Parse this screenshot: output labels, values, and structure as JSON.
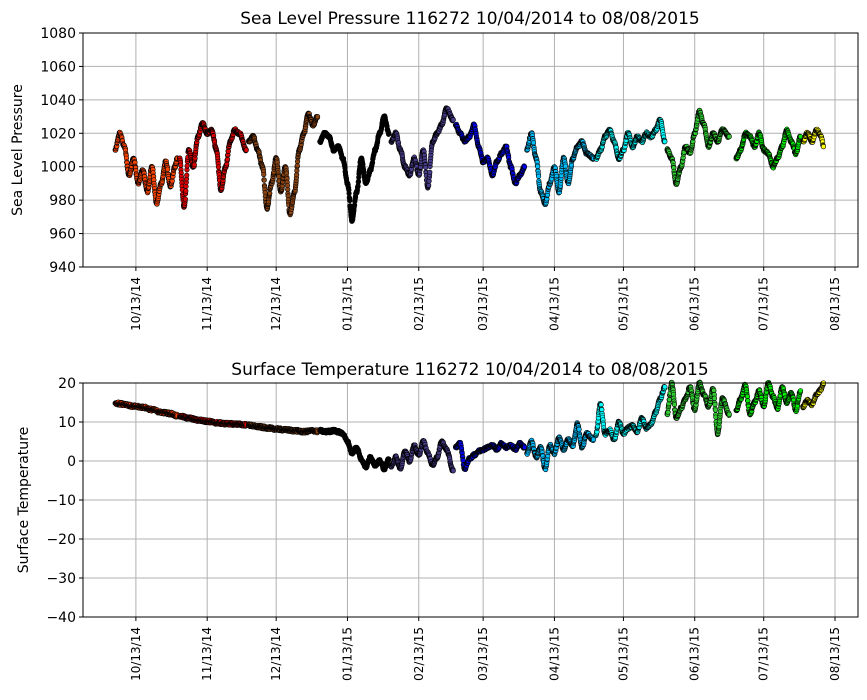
{
  "chart_data": [
    {
      "type": "scatter",
      "title": "Sea Level Pressure 116272  10/04/2014 to 08/08/2015",
      "xlabel": "",
      "ylabel": "Sea Level Pressure",
      "xlim": [
        "2014-09-20",
        "2015-08-23"
      ],
      "ylim": [
        940,
        1080
      ],
      "yticks": [
        940,
        960,
        980,
        1000,
        1020,
        1040,
        1060,
        1080
      ],
      "xticks": [
        "2014-10-13",
        "2014-11-13",
        "2014-12-13",
        "2015-01-13",
        "2015-02-13",
        "2015-03-13",
        "2015-04-13",
        "2015-05-13",
        "2015-06-13",
        "2015-07-13",
        "2015-08-13"
      ],
      "xtick_labels": [
        "10/13/14",
        "11/13/14",
        "12/13/14",
        "01/13/15",
        "02/13/15",
        "03/13/15",
        "04/13/15",
        "05/13/15",
        "06/13/15",
        "07/13/15",
        "08/13/15"
      ],
      "grid": true,
      "series": [
        {
          "color": "#ff4500",
          "x": [
            "2014-10-04",
            "2014-10-06",
            "2014-10-08",
            "2014-10-10",
            "2014-10-12",
            "2014-10-14",
            "2014-10-16",
            "2014-10-18",
            "2014-10-20",
            "2014-10-22",
            "2014-10-24",
            "2014-10-26",
            "2014-10-28",
            "2014-10-30",
            "2014-10-31"
          ],
          "y": [
            1010,
            1020,
            1012,
            995,
            1005,
            990,
            998,
            985,
            1000,
            978,
            990,
            1003,
            988,
            1000,
            1005
          ]
        },
        {
          "color": "#dd0000",
          "x": [
            "2014-11-01",
            "2014-11-03",
            "2014-11-05",
            "2014-11-07",
            "2014-11-09",
            "2014-11-11",
            "2014-11-13",
            "2014-11-15",
            "2014-11-17",
            "2014-11-19",
            "2014-11-21",
            "2014-11-23",
            "2014-11-25",
            "2014-11-27",
            "2014-11-30"
          ],
          "y": [
            1005,
            976,
            1010,
            1000,
            1018,
            1026,
            1020,
            1022,
            1010,
            986,
            1000,
            1015,
            1022,
            1020,
            1010
          ]
        },
        {
          "color": "#8b4513",
          "x": [
            "2014-12-01",
            "2014-12-03",
            "2014-12-05",
            "2014-12-07",
            "2014-12-09",
            "2014-12-11",
            "2014-12-13",
            "2014-12-15",
            "2014-12-17",
            "2014-12-19",
            "2014-12-21",
            "2014-12-23",
            "2014-12-25",
            "2014-12-27",
            "2014-12-29",
            "2014-12-31"
          ],
          "y": [
            1015,
            1018,
            1010,
            1000,
            975,
            990,
            1005,
            985,
            1000,
            972,
            985,
            1010,
            1020,
            1032,
            1025,
            1030
          ]
        },
        {
          "color": "#000000",
          "x": [
            "2015-01-01",
            "2015-01-03",
            "2015-01-05",
            "2015-01-07",
            "2015-01-09",
            "2015-01-11",
            "2015-01-13",
            "2015-01-15",
            "2015-01-17",
            "2015-01-19",
            "2015-01-21",
            "2015-01-23",
            "2015-01-25",
            "2015-01-27",
            "2015-01-29",
            "2015-01-31"
          ],
          "y": [
            1015,
            1020,
            1018,
            1010,
            1012,
            1005,
            990,
            968,
            985,
            1005,
            990,
            998,
            1010,
            1020,
            1030,
            1020
          ]
        },
        {
          "color": "#483d8b",
          "x": [
            "2015-02-01",
            "2015-02-03",
            "2015-02-05",
            "2015-02-07",
            "2015-02-09",
            "2015-02-11",
            "2015-02-13",
            "2015-02-15",
            "2015-02-17",
            "2015-02-19",
            "2015-02-21",
            "2015-02-23",
            "2015-02-25",
            "2015-02-28"
          ],
          "y": [
            1015,
            1020,
            1010,
            1000,
            995,
            1005,
            995,
            1010,
            988,
            1015,
            1020,
            1025,
            1035,
            1028
          ]
        },
        {
          "color": "#0000ee",
          "x": [
            "2015-03-01",
            "2015-03-03",
            "2015-03-05",
            "2015-03-07",
            "2015-03-09",
            "2015-03-11",
            "2015-03-13",
            "2015-03-15",
            "2015-03-17",
            "2015-03-19",
            "2015-03-21",
            "2015-03-23",
            "2015-03-25",
            "2015-03-27",
            "2015-03-29",
            "2015-03-31"
          ],
          "y": [
            1025,
            1020,
            1015,
            1018,
            1025,
            1012,
            1003,
            1005,
            995,
            1003,
            1008,
            1012,
            1000,
            990,
            995,
            1000
          ]
        },
        {
          "color": "#00bfff",
          "x": [
            "2015-04-01",
            "2015-04-03",
            "2015-04-05",
            "2015-04-07",
            "2015-04-09",
            "2015-04-11",
            "2015-04-13",
            "2015-04-15",
            "2015-04-17",
            "2015-04-19",
            "2015-04-21",
            "2015-04-23",
            "2015-04-25",
            "2015-04-27",
            "2015-04-30"
          ],
          "y": [
            1010,
            1020,
            1005,
            985,
            978,
            990,
            1000,
            985,
            1005,
            990,
            1005,
            1012,
            1015,
            1008,
            1005
          ]
        },
        {
          "color": "#00ffff",
          "x": [
            "2015-05-01",
            "2015-05-03",
            "2015-05-05",
            "2015-05-07",
            "2015-05-09",
            "2015-05-11",
            "2015-05-13",
            "2015-05-15",
            "2015-05-17",
            "2015-05-19",
            "2015-05-21",
            "2015-05-23",
            "2015-05-25",
            "2015-05-27",
            "2015-05-29",
            "2015-05-31"
          ],
          "y": [
            1005,
            1010,
            1018,
            1022,
            1015,
            1005,
            1010,
            1020,
            1012,
            1018,
            1015,
            1020,
            1018,
            1022,
            1028,
            1015
          ]
        },
        {
          "color": "#32cd32",
          "x": [
            "2015-06-01",
            "2015-06-03",
            "2015-06-05",
            "2015-06-07",
            "2015-06-09",
            "2015-06-11",
            "2015-06-13",
            "2015-06-15",
            "2015-06-17",
            "2015-06-19",
            "2015-06-21",
            "2015-06-23",
            "2015-06-25",
            "2015-06-28"
          ],
          "y": [
            1010,
            1005,
            990,
            1000,
            1012,
            1008,
            1020,
            1033,
            1025,
            1012,
            1020,
            1015,
            1022,
            1018
          ]
        },
        {
          "color": "#00ee00",
          "x": [
            "2015-07-01",
            "2015-07-03",
            "2015-07-05",
            "2015-07-07",
            "2015-07-09",
            "2015-07-11",
            "2015-07-13",
            "2015-07-15",
            "2015-07-17",
            "2015-07-19",
            "2015-07-21",
            "2015-07-23",
            "2015-07-25",
            "2015-07-27",
            "2015-07-29"
          ],
          "y": [
            1005,
            1010,
            1020,
            1018,
            1012,
            1020,
            1010,
            1008,
            1000,
            1005,
            1012,
            1022,
            1015,
            1008,
            1018
          ]
        },
        {
          "color": "#ffff00",
          "x": [
            "2015-07-30",
            "2015-08-01",
            "2015-08-03",
            "2015-08-05",
            "2015-08-07",
            "2015-08-08"
          ],
          "y": [
            1015,
            1020,
            1015,
            1022,
            1018,
            1012
          ]
        }
      ]
    },
    {
      "type": "scatter",
      "title": "Surface Temperature 116272  10/04/2014 to 08/08/2015",
      "xlabel": "",
      "ylabel": "Surface Temperature",
      "xlim": [
        "2014-09-20",
        "2015-08-23"
      ],
      "ylim": [
        -40,
        20
      ],
      "yticks": [
        -40,
        -30,
        -20,
        -10,
        0,
        10,
        20
      ],
      "ytick_labels": [
        "−40",
        "−30",
        "−20",
        "−10",
        "0",
        "10",
        "20"
      ],
      "xticks": [
        "2014-10-13",
        "2014-11-13",
        "2014-12-13",
        "2015-01-13",
        "2015-02-13",
        "2015-03-13",
        "2015-04-13",
        "2015-05-13",
        "2015-06-13",
        "2015-07-13",
        "2015-08-13"
      ],
      "xtick_labels": [
        "10/13/14",
        "11/13/14",
        "12/13/14",
        "01/13/15",
        "02/13/15",
        "03/13/15",
        "04/13/15",
        "05/13/15",
        "06/13/15",
        "07/13/15",
        "08/13/15"
      ],
      "grid": true,
      "series": [
        {
          "color": "#ff4500",
          "x": [
            "2014-10-04",
            "2014-10-08",
            "2014-10-12",
            "2014-10-16",
            "2014-10-20",
            "2014-10-24",
            "2014-10-28",
            "2014-10-31"
          ],
          "y": [
            14.8,
            14.6,
            14.0,
            13.8,
            13.2,
            12.5,
            12.2,
            11.6
          ]
        },
        {
          "color": "#dd0000",
          "x": [
            "2014-11-01",
            "2014-11-05",
            "2014-11-09",
            "2014-11-13",
            "2014-11-17",
            "2014-11-21",
            "2014-11-25",
            "2014-11-30"
          ],
          "y": [
            11.5,
            11.0,
            10.5,
            10.2,
            9.8,
            9.6,
            9.5,
            9.3
          ]
        },
        {
          "color": "#8b4513",
          "x": [
            "2014-12-01",
            "2014-12-05",
            "2014-12-09",
            "2014-12-13",
            "2014-12-17",
            "2014-12-21",
            "2014-12-25",
            "2014-12-29",
            "2014-12-31"
          ],
          "y": [
            9.2,
            8.8,
            8.5,
            8.2,
            8.0,
            7.8,
            7.5,
            7.8,
            7.6
          ]
        },
        {
          "color": "#000000",
          "x": [
            "2015-01-01",
            "2015-01-03",
            "2015-01-05",
            "2015-01-07",
            "2015-01-09",
            "2015-01-11",
            "2015-01-13",
            "2015-01-15",
            "2015-01-17",
            "2015-01-19",
            "2015-01-21",
            "2015-01-23",
            "2015-01-25",
            "2015-01-27",
            "2015-01-29",
            "2015-01-31"
          ],
          "y": [
            7.8,
            7.5,
            7.6,
            7.8,
            7.5,
            7.0,
            5.0,
            2.0,
            3.5,
            0.5,
            -1.5,
            1.0,
            -1.0,
            0.0,
            -2.0,
            0.5
          ]
        },
        {
          "color": "#483d8b",
          "x": [
            "2015-02-01",
            "2015-02-03",
            "2015-02-05",
            "2015-02-07",
            "2015-02-09",
            "2015-02-11",
            "2015-02-13",
            "2015-02-15",
            "2015-02-17",
            "2015-02-19",
            "2015-02-21",
            "2015-02-23",
            "2015-02-25",
            "2015-02-28"
          ],
          "y": [
            -1.5,
            1.0,
            -2.0,
            2.5,
            0.0,
            4.0,
            1.5,
            5.0,
            2.0,
            -1.0,
            1.0,
            5.0,
            3.0,
            -2.5
          ]
        },
        {
          "color": "#0000ee",
          "x": [
            "2015-03-01",
            "2015-03-03",
            "2015-03-05",
            "2015-03-07",
            "2015-03-09",
            "2015-03-11",
            "2015-03-13",
            "2015-03-15",
            "2015-03-17",
            "2015-03-19",
            "2015-03-21",
            "2015-03-23",
            "2015-03-25",
            "2015-03-27",
            "2015-03-29",
            "2015-03-31"
          ],
          "y": [
            3.5,
            4.5,
            -2.0,
            0.5,
            1.5,
            2.5,
            3.0,
            3.5,
            4.0,
            3.0,
            4.5,
            3.5,
            4.0,
            3.0,
            4.5,
            3.5
          ]
        },
        {
          "color": "#00bfff",
          "x": [
            "2015-04-01",
            "2015-04-03",
            "2015-04-05",
            "2015-04-07",
            "2015-04-09",
            "2015-04-11",
            "2015-04-13",
            "2015-04-15",
            "2015-04-17",
            "2015-04-19",
            "2015-04-21",
            "2015-04-23",
            "2015-04-25",
            "2015-04-27",
            "2015-04-30"
          ],
          "y": [
            2.0,
            5.0,
            1.0,
            3.5,
            -2.0,
            4.0,
            2.0,
            6.0,
            3.0,
            5.5,
            4.0,
            9.5,
            3.5,
            7.0,
            5.5
          ]
        },
        {
          "color": "#00ffff",
          "x": [
            "2015-05-01",
            "2015-05-03",
            "2015-05-05",
            "2015-05-07",
            "2015-05-09",
            "2015-05-11",
            "2015-05-13",
            "2015-05-15",
            "2015-05-17",
            "2015-05-19",
            "2015-05-21",
            "2015-05-23",
            "2015-05-25",
            "2015-05-27",
            "2015-05-29",
            "2015-05-31"
          ],
          "y": [
            6.5,
            14.5,
            7.0,
            8.0,
            5.5,
            10.0,
            7.0,
            8.5,
            9.0,
            7.5,
            11.0,
            8.5,
            9.5,
            12.5,
            16.0,
            19.0
          ]
        },
        {
          "color": "#32cd32",
          "x": [
            "2015-06-01",
            "2015-06-03",
            "2015-06-05",
            "2015-06-07",
            "2015-06-09",
            "2015-06-11",
            "2015-06-13",
            "2015-06-15",
            "2015-06-17",
            "2015-06-19",
            "2015-06-21",
            "2015-06-23",
            "2015-06-25",
            "2015-06-28"
          ],
          "y": [
            12.0,
            20.0,
            11.0,
            13.5,
            16.0,
            19.0,
            13.0,
            20.0,
            17.0,
            14.0,
            18.5,
            7.0,
            16.0,
            12.0
          ]
        },
        {
          "color": "#00ee00",
          "x": [
            "2015-07-01",
            "2015-07-03",
            "2015-07-05",
            "2015-07-07",
            "2015-07-09",
            "2015-07-11",
            "2015-07-13",
            "2015-07-15",
            "2015-07-17",
            "2015-07-19",
            "2015-07-21",
            "2015-07-23",
            "2015-07-25",
            "2015-07-27",
            "2015-07-29"
          ],
          "y": [
            13.0,
            16.0,
            19.5,
            12.0,
            15.0,
            18.0,
            14.0,
            20.0,
            16.5,
            13.5,
            19.0,
            15.0,
            17.5,
            13.0,
            18.0
          ]
        },
        {
          "color": "#ffff00",
          "x": [
            "2015-07-30",
            "2015-08-01",
            "2015-08-03",
            "2015-08-05",
            "2015-08-07",
            "2015-08-08"
          ],
          "y": [
            14.0,
            15.5,
            14.5,
            17.0,
            18.5,
            20.0
          ]
        }
      ]
    }
  ]
}
